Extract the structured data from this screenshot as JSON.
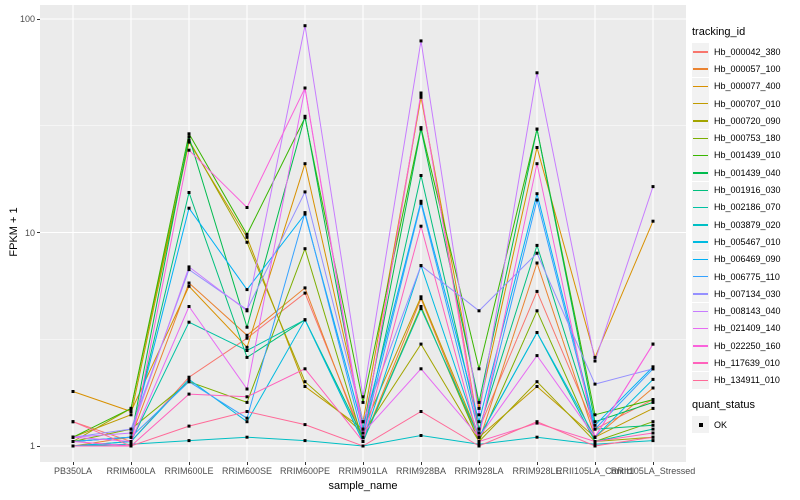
{
  "figure": {
    "background": "#FFFFFF",
    "panel_bg": "#EBEBEB",
    "grid_color": "#FFFFFF",
    "axis_text_color": "#4D4D4D",
    "tick_mark_color": "#333333"
  },
  "legend": {
    "title": "tracking_id",
    "key_bg": "#F2F2F2"
  },
  "legend2": {
    "title": "quant_status",
    "items": [
      {
        "label": "OK",
        "marker": "black-filled-square"
      }
    ]
  },
  "chart_data": {
    "type": "line",
    "title": "",
    "xlabel": "sample_name",
    "ylabel": "FPKM + 1",
    "y_scale": "log10",
    "ylim": [
      0.85,
      115
    ],
    "y_ticks": [
      1,
      10,
      100
    ],
    "y_minor_gridlines": [
      3.162,
      31.62
    ],
    "grid": true,
    "legend_position": "right",
    "point_marker": "filled-square",
    "point_color": "#000000",
    "categories": [
      "PB350LA",
      "RRIM600LA",
      "RRIM600LE",
      "RRIM600SE",
      "RRIM600PE",
      "RRIM901LA",
      "RRIM928BA",
      "RRIM928LA",
      "RRIM928LE",
      "RRII105LA_Control",
      "RRII105LA_Stressed"
    ],
    "series": [
      {
        "name": "Hb_000042_380",
        "color": "#F8766D",
        "values": [
          1.3,
          1.05,
          2.1,
          3.2,
          5.2,
          1.1,
          44,
          1.2,
          5.3,
          1.2,
          1.65
        ]
      },
      {
        "name": "Hb_000057_100",
        "color": "#EA8331",
        "values": [
          1.0,
          1.1,
          5.8,
          3.3,
          5.5,
          1.05,
          4.9,
          1.05,
          7.2,
          1.1,
          1.87
        ]
      },
      {
        "name": "Hb_000077_400",
        "color": "#D89000",
        "values": [
          1.8,
          1.45,
          5.6,
          2.9,
          21,
          1.3,
          43,
          1.5,
          25,
          2.6,
          11.3
        ]
      },
      {
        "name": "Hb_000707_010",
        "color": "#C09B00",
        "values": [
          1.1,
          1.4,
          26.5,
          9.5,
          1.9,
          1.2,
          5.0,
          1.1,
          1.9,
          1.1,
          1.5
        ]
      },
      {
        "name": "Hb_000720_090",
        "color": "#A3A500",
        "values": [
          1.05,
          1.5,
          27,
          9.0,
          2.0,
          1.15,
          3.0,
          1.05,
          2.0,
          1.05,
          1.1
        ]
      },
      {
        "name": "Hb_000753_180",
        "color": "#7CAE00",
        "values": [
          1.05,
          1.2,
          2.0,
          1.6,
          8.4,
          1.05,
          4.5,
          1.05,
          4.3,
          1.05,
          1.3
        ]
      },
      {
        "name": "Hb_001439_010",
        "color": "#39B600",
        "values": [
          1.1,
          1.5,
          29,
          9.8,
          34.5,
          1.6,
          31,
          2.3,
          30.5,
          1.4,
          1.65
        ]
      },
      {
        "name": "Hb_001439_040",
        "color": "#00BB4E",
        "values": [
          1.05,
          1.1,
          28,
          3.6,
          35,
          1.2,
          30.5,
          1.6,
          30.5,
          1.3,
          1.6
        ]
      },
      {
        "name": "Hb_001916_030",
        "color": "#00BF7D",
        "values": [
          1.05,
          1.1,
          15.4,
          2.6,
          3.9,
          1.1,
          18.5,
          1.2,
          8.7,
          1.2,
          1.25
        ]
      },
      {
        "name": "Hb_002186_070",
        "color": "#00C1A3",
        "values": [
          1.0,
          1.05,
          3.8,
          2.8,
          3.9,
          1.05,
          4.4,
          1.1,
          3.4,
          1.05,
          1.2
        ]
      },
      {
        "name": "Hb_003879_020",
        "color": "#00BFC4",
        "values": [
          1.0,
          1.02,
          1.06,
          1.1,
          1.06,
          1.0,
          1.12,
          1.02,
          1.1,
          1.02,
          1.06
        ]
      },
      {
        "name": "Hb_005467_010",
        "color": "#00BAE0",
        "values": [
          1.0,
          1.05,
          2.05,
          1.3,
          3.9,
          1.05,
          7.0,
          1.1,
          3.4,
          1.1,
          2.05
        ]
      },
      {
        "name": "Hb_006469_090",
        "color": "#00B0F6",
        "values": [
          1.05,
          1.1,
          13,
          5.4,
          12.2,
          1.2,
          14,
          1.3,
          15.2,
          1.25,
          2.35
        ]
      },
      {
        "name": "Hb_006775_110",
        "color": "#35A2FF",
        "values": [
          1.05,
          1.1,
          2.0,
          1.35,
          12.4,
          1.1,
          13.7,
          1.15,
          14.2,
          1.2,
          2.3
        ]
      },
      {
        "name": "Hb_007134_030",
        "color": "#9590FF",
        "values": [
          1.1,
          1.2,
          6.7,
          4.35,
          15.5,
          1.3,
          7.0,
          4.3,
          8.0,
          1.95,
          2.3
        ]
      },
      {
        "name": "Hb_008143_040",
        "color": "#C77CFF",
        "values": [
          1.1,
          1.15,
          6.9,
          4.3,
          93,
          1.7,
          79,
          1.4,
          56,
          2.5,
          16.4
        ]
      },
      {
        "name": "Hb_021409_140",
        "color": "#E76BF3",
        "values": [
          1.1,
          1.05,
          4.5,
          1.85,
          47.5,
          1.15,
          2.3,
          1.1,
          2.65,
          1.1,
          3.0
        ]
      },
      {
        "name": "Hb_022250_160",
        "color": "#FA62DB",
        "values": [
          1.05,
          1.0,
          24.3,
          13.1,
          47.5,
          1.1,
          45,
          1.1,
          21,
          1.1,
          3.0
        ]
      },
      {
        "name": "Hb_117639_010",
        "color": "#FF62BC",
        "values": [
          1.0,
          1.0,
          1.75,
          1.7,
          2.3,
          1.05,
          10.7,
          1.05,
          1.28,
          1.05,
          1.15
        ]
      },
      {
        "name": "Hb_134911_010",
        "color": "#FF6A98",
        "values": [
          1.3,
          1.0,
          1.24,
          1.45,
          1.26,
          1.0,
          1.45,
          1.0,
          1.3,
          1.0,
          1.1
        ]
      }
    ]
  }
}
